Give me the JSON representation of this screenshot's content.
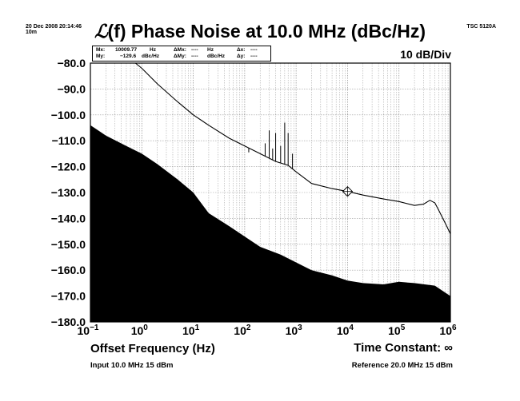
{
  "header": {
    "timestamp_line1": "20 Dec 2008 20:14:46",
    "timestamp_line2": "10m",
    "model": "TSC 5120A"
  },
  "title": {
    "script_symbol": "ℒ",
    "text": "(f) Phase Noise at 10.0 MHz (dBc/Hz)"
  },
  "scale_label": "10 dB/Div",
  "marker_readout": {
    "mx_label": "Mx:",
    "mx_value": "10009.77",
    "mx_unit": "Hz",
    "my_label": "My:",
    "my_value": "−129.6",
    "my_unit": "dBc/Hz",
    "dmx_label": "ΔMx:",
    "dmx_value": "----",
    "dmx_unit": "Hz",
    "dmy_label": "ΔMy:",
    "dmy_value": "----",
    "dmy_unit": "dBc/Hz",
    "dx_label": "Δx:",
    "dx_value": "----",
    "dy_label": "Δy:",
    "dy_value": "----"
  },
  "footer": {
    "xlabel": "Offset Frequency (Hz)",
    "time_constant": "Time Constant: ∞",
    "input": "Input 10.0 MHz 15 dBm",
    "reference": "Reference 20.0 MHz 15 dBm"
  },
  "colors": {
    "trace": "#000000",
    "noise_floor_fill": "#000000",
    "grid": "#999999"
  },
  "chart_data": {
    "type": "line",
    "title": "ℒ(f) Phase Noise at 10.0 MHz (dBc/Hz)",
    "xlabel": "Offset Frequency (Hz)",
    "ylabel": "",
    "x_scale": "log",
    "xlim": [
      0.1,
      1000000
    ],
    "ylim": [
      -180,
      -80
    ],
    "x_tick_labels": [
      {
        "base": "10",
        "exp": "−1"
      },
      {
        "base": "10",
        "exp": "0"
      },
      {
        "base": "10",
        "exp": "1"
      },
      {
        "base": "10",
        "exp": "2"
      },
      {
        "base": "10",
        "exp": "3"
      },
      {
        "base": "10",
        "exp": "4"
      },
      {
        "base": "10",
        "exp": "5"
      },
      {
        "base": "10",
        "exp": "6"
      }
    ],
    "y_tick_labels": [
      "−80.0",
      "−90.0",
      "−100.0",
      "−110.0",
      "−120.0",
      "−130.0",
      "−140.0",
      "−150.0",
      "−160.0",
      "−170.0",
      "−180.0"
    ],
    "grid": true,
    "marker": {
      "x": 10009.77,
      "y": -129.6
    },
    "series": [
      {
        "kind": "trace",
        "x": [
          0.75,
          1.0,
          2.0,
          5.0,
          10,
          20,
          50,
          100,
          200,
          400,
          700,
          1000,
          2000,
          5000,
          10000,
          20000,
          50000,
          100000,
          200000,
          300000,
          400000,
          500000,
          600000,
          800000,
          1000000
        ],
        "y": [
          -80,
          -82,
          -88,
          -95,
          -100,
          -104,
          -109,
          -112,
          -115,
          -118,
          -119.5,
          -122,
          -126.5,
          -128.5,
          -129.6,
          -131,
          -132.5,
          -133.5,
          -135,
          -134.5,
          -133,
          -134,
          -137,
          -142,
          -146
        ],
        "spurs": [
          {
            "x": 120,
            "top": -114.5
          },
          {
            "x": 250,
            "top": -111
          },
          {
            "x": 300,
            "top": -106
          },
          {
            "x": 350,
            "top": -113
          },
          {
            "x": 400,
            "top": -107
          },
          {
            "x": 500,
            "top": -112
          },
          {
            "x": 600,
            "top": -103
          },
          {
            "x": 700,
            "top": -107
          },
          {
            "x": 850,
            "top": -115
          }
        ]
      },
      {
        "kind": "noise-floor",
        "x": [
          0.1,
          0.2,
          0.5,
          1.0,
          2.0,
          5.0,
          10,
          20,
          50,
          100,
          200,
          500,
          1000,
          2000,
          5000,
          10000,
          20000,
          50000,
          100000,
          200000,
          500000,
          1000000
        ],
        "y": [
          -104,
          -108,
          -112,
          -115,
          -119,
          -125,
          -130,
          -138,
          -143,
          -147,
          -151,
          -154,
          -157,
          -160,
          -162,
          -164,
          -165,
          -165.5,
          -164.5,
          -165,
          -166,
          -170
        ]
      }
    ]
  }
}
